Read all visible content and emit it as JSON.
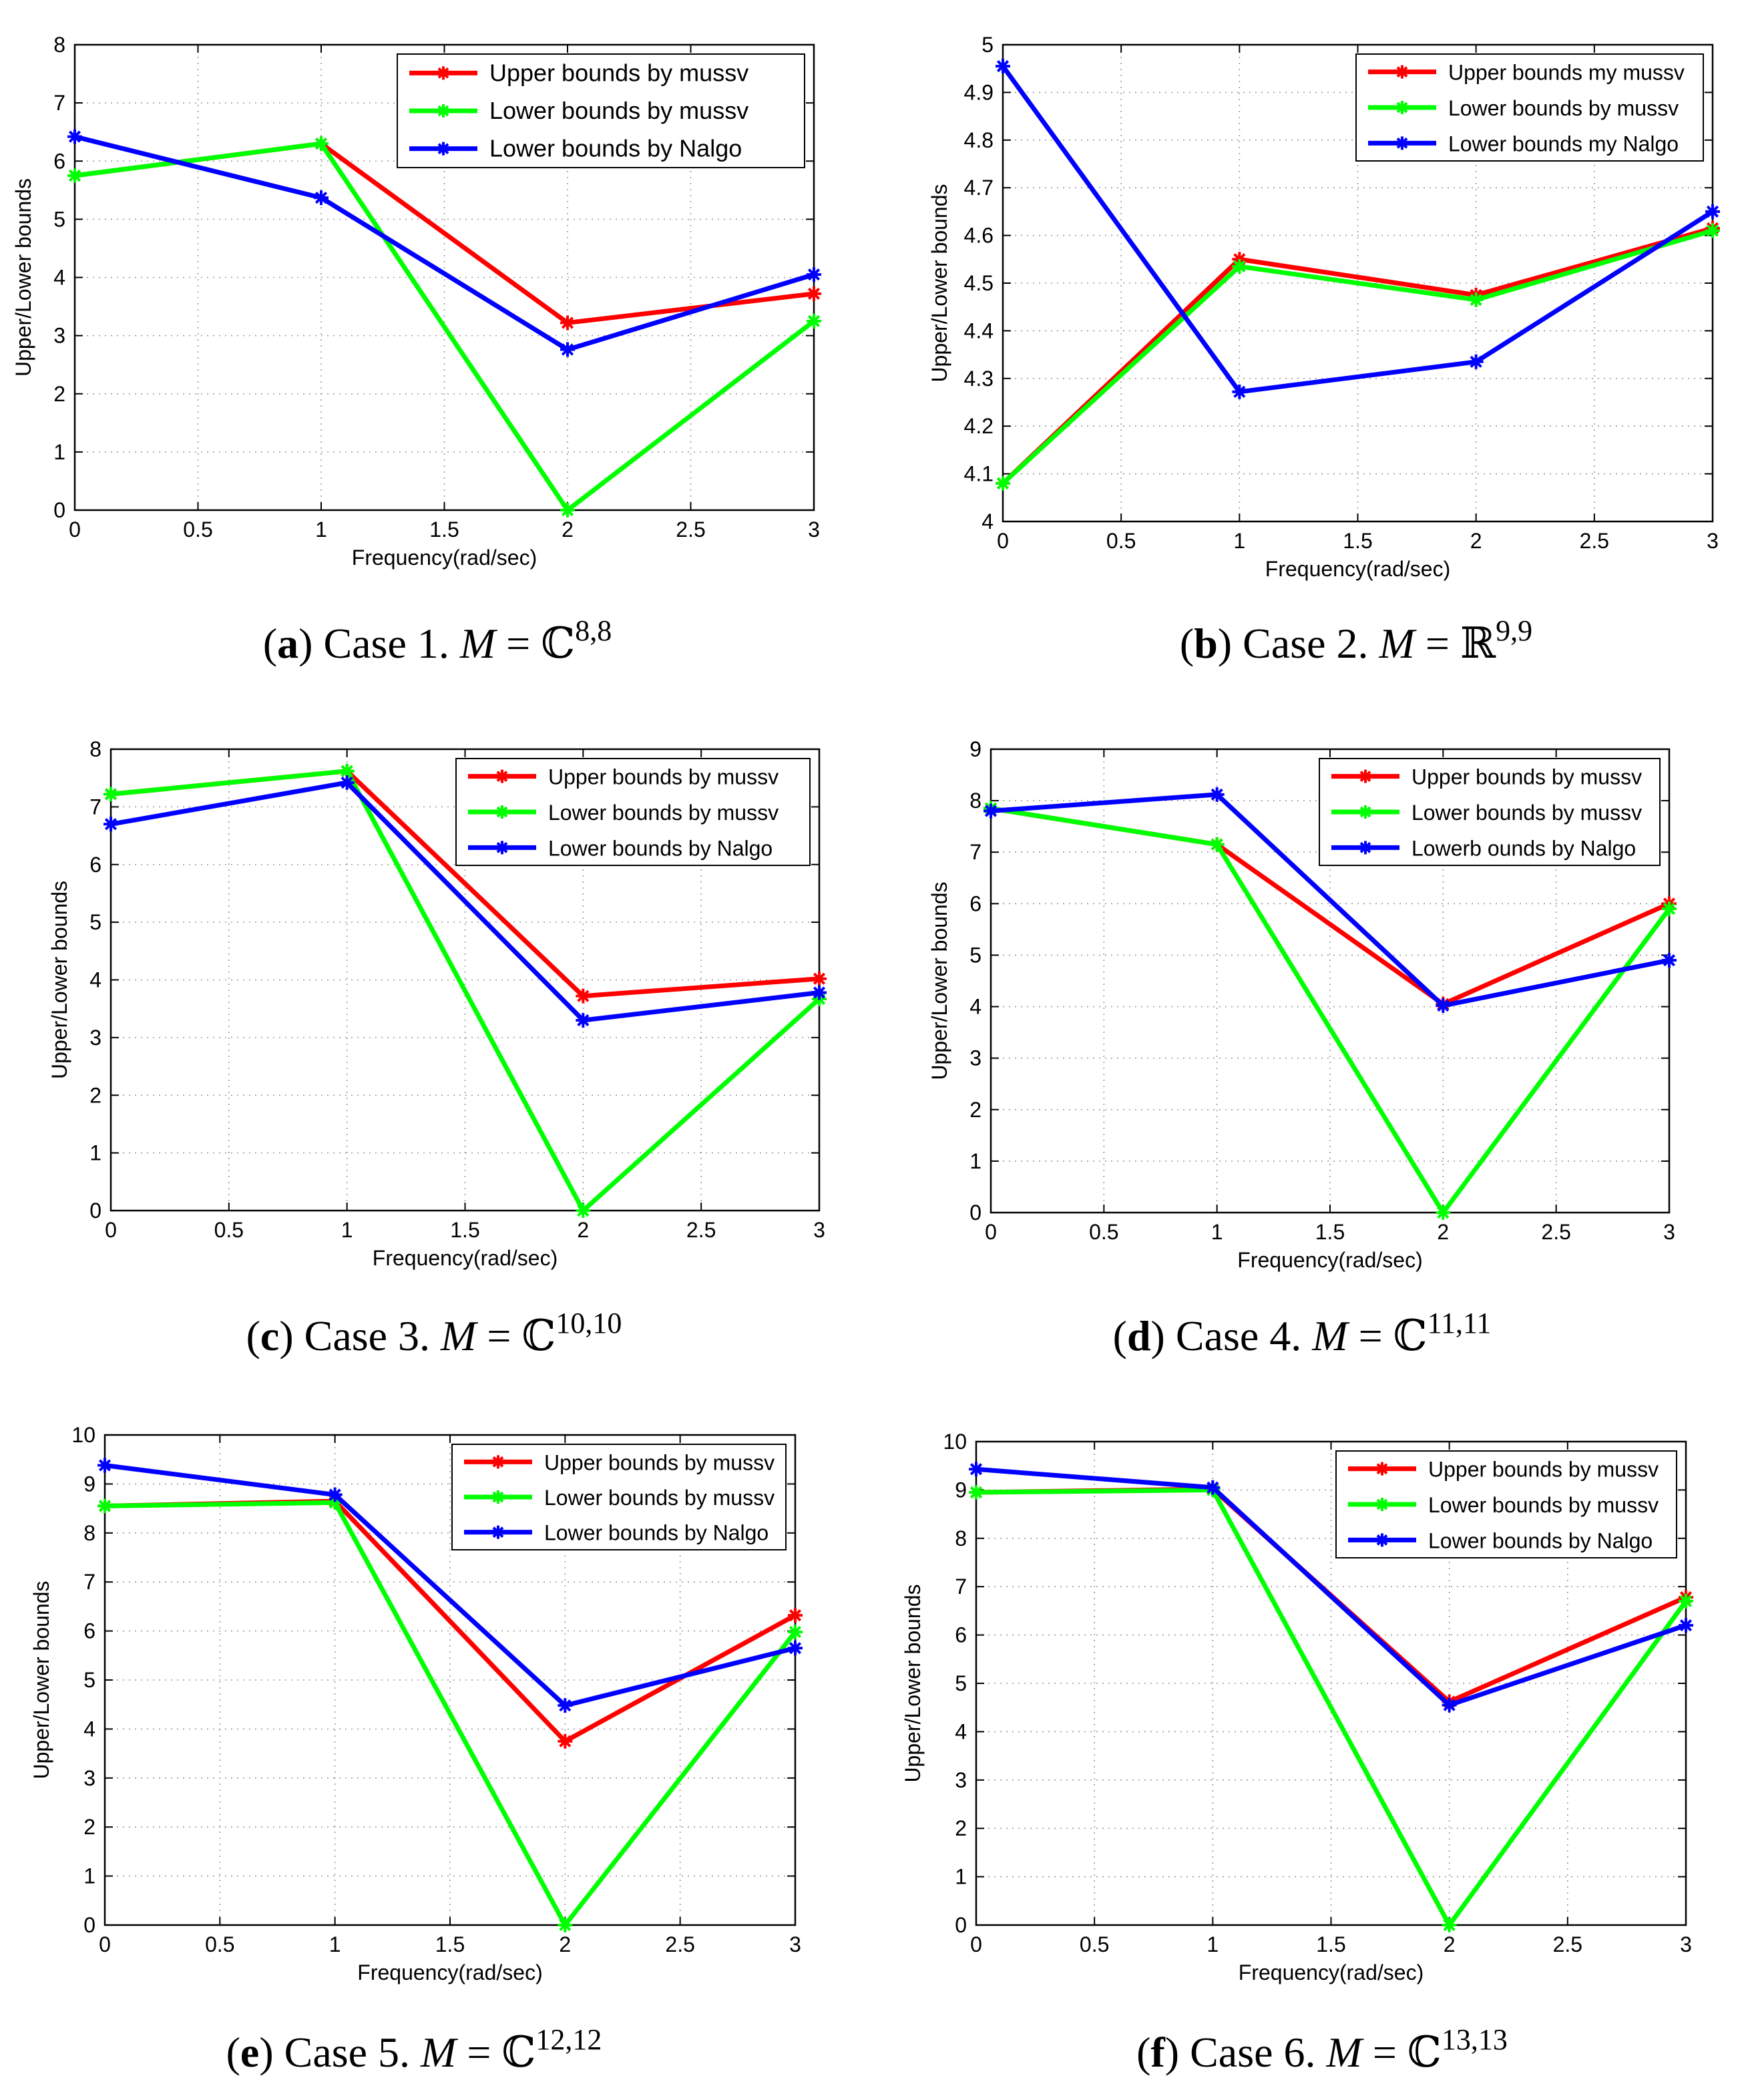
{
  "figure": {
    "panels": [
      {
        "id": "a",
        "caption": {
          "letter": "a",
          "case": "Case 1.",
          "symbol": "ℂ",
          "superscript": "8,8"
        },
        "legend": [
          "Upper bounds by mussv",
          "Lower bounds by mussv",
          "Lower bounds by Nalgo"
        ]
      },
      {
        "id": "b",
        "caption": {
          "letter": "b",
          "case": "Case 2.",
          "symbol": "ℝ",
          "superscript": "9,9"
        },
        "legend": [
          "Upper bounds my mussv",
          "Lower bounds by mussv",
          "Lower bounds my Nalgo"
        ]
      },
      {
        "id": "c",
        "caption": {
          "letter": "c",
          "case": "Case 3.",
          "symbol": "ℂ",
          "superscript": "10,10"
        },
        "legend": [
          "Upper bounds by mussv",
          "Lower bounds by mussv",
          "Lower bounds by Nalgo"
        ]
      },
      {
        "id": "d",
        "caption": {
          "letter": "d",
          "case": "Case 4.",
          "symbol": "ℂ",
          "superscript": "11,11"
        },
        "legend": [
          "Upper bounds by mussv",
          "Lower bounds by mussv",
          "Lowerb ounds by Nalgo"
        ]
      },
      {
        "id": "e",
        "caption": {
          "letter": "e",
          "case": "Case 5.",
          "symbol": "ℂ",
          "superscript": "12,12"
        },
        "legend": [
          "Upper bounds by mussv",
          "Lower bounds by mussv",
          "Lower bounds by Nalgo"
        ]
      },
      {
        "id": "f",
        "caption": {
          "letter": "f",
          "case": "Case 6.",
          "symbol": "ℂ",
          "superscript": "13,13"
        },
        "legend": [
          "Upper bounds by mussv",
          "Lower bounds by mussv",
          "Lower bounds by Nalgo"
        ]
      }
    ],
    "caption_var": "M",
    "caption_eq": "="
  },
  "colors": {
    "upper_mussv": "#ff0000",
    "lower_mussv": "#00ff00",
    "lower_nalgo": "#0000ff"
  },
  "chart_data": [
    {
      "type": "line",
      "xlabel": "Frequency(rad/sec)",
      "ylabel": "Upper/Lower bounds",
      "xlim": [
        0,
        3
      ],
      "ylim": [
        0,
        8
      ],
      "xticks": [
        0,
        0.5,
        1,
        1.5,
        2,
        2.5,
        3
      ],
      "xtick_labels": [
        "0",
        "0.5",
        "1",
        "1.5",
        "2",
        "2.5",
        "3"
      ],
      "yticks": [
        0,
        1,
        2,
        3,
        4,
        5,
        6,
        7,
        8
      ],
      "ytick_labels": [
        "0",
        "1",
        "2",
        "3",
        "4",
        "5",
        "6",
        "7",
        "8"
      ],
      "grid": true,
      "legend_loc": "top-right",
      "x": [
        0,
        1,
        2,
        3
      ],
      "series": [
        {
          "name": "Upper bounds by mussv",
          "color": "#ff0000",
          "values": [
            5.75,
            6.3,
            3.22,
            3.72
          ]
        },
        {
          "name": "Lower bounds by mussv",
          "color": "#00ff00",
          "values": [
            5.75,
            6.3,
            0.0,
            3.25
          ]
        },
        {
          "name": "Lower bounds by Nalgo",
          "color": "#0000ff",
          "values": [
            6.42,
            5.37,
            2.76,
            4.05
          ]
        }
      ]
    },
    {
      "type": "line",
      "xlabel": "Frequency(rad/sec)",
      "ylabel": "Upper/Lower bounds",
      "xlim": [
        0,
        3
      ],
      "ylim": [
        4,
        5
      ],
      "xticks": [
        0,
        0.5,
        1,
        1.5,
        2,
        2.5,
        3
      ],
      "xtick_labels": [
        "0",
        "0.5",
        "1",
        "1.5",
        "2",
        "2.5",
        "3"
      ],
      "yticks": [
        4,
        4.1,
        4.2,
        4.3,
        4.4,
        4.5,
        4.6,
        4.7,
        4.8,
        4.9,
        5
      ],
      "ytick_labels": [
        "4",
        "4.1",
        "4.2",
        "4.3",
        "4.4",
        "4.5",
        "4.6",
        "4.7",
        "4.8",
        "4.9",
        "5"
      ],
      "grid": true,
      "legend_loc": "top-right",
      "x": [
        0,
        1,
        2,
        3
      ],
      "series": [
        {
          "name": "Upper bounds my mussv",
          "color": "#ff0000",
          "values": [
            4.08,
            4.55,
            4.475,
            4.615
          ]
        },
        {
          "name": "Lower bounds by mussv",
          "color": "#00ff00",
          "values": [
            4.08,
            4.535,
            4.465,
            4.61
          ]
        },
        {
          "name": "Lower bounds my Nalgo",
          "color": "#0000ff",
          "values": [
            4.955,
            4.272,
            4.335,
            4.65
          ]
        }
      ]
    },
    {
      "type": "line",
      "xlabel": "Frequency(rad/sec)",
      "ylabel": "Upper/Lower bounds",
      "xlim": [
        0,
        3
      ],
      "ylim": [
        0,
        8
      ],
      "xticks": [
        0,
        0.5,
        1,
        1.5,
        2,
        2.5,
        3
      ],
      "xtick_labels": [
        "0",
        "0.5",
        "1",
        "1.5",
        "2",
        "2.5",
        "3"
      ],
      "yticks": [
        0,
        1,
        2,
        3,
        4,
        5,
        6,
        7,
        8
      ],
      "ytick_labels": [
        "0",
        "1",
        "2",
        "3",
        "4",
        "5",
        "6",
        "7",
        "8"
      ],
      "grid": true,
      "legend_loc": "top-right",
      "x": [
        0,
        1,
        2,
        3
      ],
      "series": [
        {
          "name": "Upper bounds by mussv",
          "color": "#ff0000",
          "values": [
            7.22,
            7.62,
            3.72,
            4.02
          ]
        },
        {
          "name": "Lower bounds by mussv",
          "color": "#00ff00",
          "values": [
            7.22,
            7.62,
            0.0,
            3.67
          ]
        },
        {
          "name": "Lower bounds by Nalgo",
          "color": "#0000ff",
          "values": [
            6.7,
            7.42,
            3.3,
            3.78
          ]
        }
      ]
    },
    {
      "type": "line",
      "xlabel": "Frequency(rad/sec)",
      "ylabel": "Upper/Lower bounds",
      "xlim": [
        0,
        3
      ],
      "ylim": [
        0,
        9
      ],
      "xticks": [
        0,
        0.5,
        1,
        1.5,
        2,
        2.5,
        3
      ],
      "xtick_labels": [
        "0",
        "0.5",
        "1",
        "1.5",
        "2",
        "2.5",
        "3"
      ],
      "yticks": [
        0,
        1,
        2,
        3,
        4,
        5,
        6,
        7,
        8,
        9
      ],
      "ytick_labels": [
        "0",
        "1",
        "2",
        "3",
        "4",
        "5",
        "6",
        "7",
        "8",
        "9"
      ],
      "grid": true,
      "legend_loc": "top-right",
      "x": [
        0,
        1,
        2,
        3
      ],
      "series": [
        {
          "name": "Upper bounds by mussv",
          "color": "#ff0000",
          "values": [
            7.85,
            7.15,
            4.05,
            6.0
          ]
        },
        {
          "name": "Lower bounds by mussv",
          "color": "#00ff00",
          "values": [
            7.85,
            7.15,
            0.0,
            5.9
          ]
        },
        {
          "name": "Lowerb ounds by Nalgo",
          "color": "#0000ff",
          "values": [
            7.8,
            8.12,
            4.02,
            4.9
          ]
        }
      ]
    },
    {
      "type": "line",
      "xlabel": "Frequency(rad/sec)",
      "ylabel": "Upper/Lower bounds",
      "xlim": [
        0,
        3
      ],
      "ylim": [
        0,
        10
      ],
      "xticks": [
        0,
        0.5,
        1,
        1.5,
        2,
        2.5,
        3
      ],
      "xtick_labels": [
        "0",
        "0.5",
        "1",
        "1.5",
        "2",
        "2.5",
        "3"
      ],
      "yticks": [
        0,
        1,
        2,
        3,
        4,
        5,
        6,
        7,
        8,
        9,
        10
      ],
      "ytick_labels": [
        "0",
        "1",
        "2",
        "3",
        "4",
        "5",
        "6",
        "7",
        "8",
        "9",
        "10"
      ],
      "grid": true,
      "legend_loc": "top-right",
      "x": [
        0,
        1,
        2,
        3
      ],
      "series": [
        {
          "name": "Upper bounds by mussv",
          "color": "#ff0000",
          "values": [
            8.55,
            8.65,
            3.75,
            6.32
          ]
        },
        {
          "name": "Lower bounds by mussv",
          "color": "#00ff00",
          "values": [
            8.55,
            8.62,
            0.0,
            5.98
          ]
        },
        {
          "name": "Lower bounds by Nalgo",
          "color": "#0000ff",
          "values": [
            9.38,
            8.78,
            4.48,
            5.65
          ]
        }
      ]
    },
    {
      "type": "line",
      "xlabel": "Frequency(rad/sec)",
      "ylabel": "Upper/Lower bounds",
      "xlim": [
        0,
        3
      ],
      "ylim": [
        0,
        10
      ],
      "xticks": [
        0,
        0.5,
        1,
        1.5,
        2,
        2.5,
        3
      ],
      "xtick_labels": [
        "0",
        "0.5",
        "1",
        "1.5",
        "2",
        "2.5",
        "3"
      ],
      "yticks": [
        0,
        1,
        2,
        3,
        4,
        5,
        6,
        7,
        8,
        9,
        10
      ],
      "ytick_labels": [
        "0",
        "1",
        "2",
        "3",
        "4",
        "5",
        "6",
        "7",
        "8",
        "9",
        "10"
      ],
      "grid": true,
      "legend_loc": "top-right",
      "x": [
        0,
        1,
        2,
        3
      ],
      "series": [
        {
          "name": "Upper bounds by mussv",
          "color": "#ff0000",
          "values": [
            8.95,
            9.02,
            4.62,
            6.78
          ]
        },
        {
          "name": "Lower bounds by mussv",
          "color": "#00ff00",
          "values": [
            8.95,
            9.0,
            0.0,
            6.7
          ]
        },
        {
          "name": "Lower bounds by Nalgo",
          "color": "#0000ff",
          "values": [
            9.43,
            9.05,
            4.55,
            6.2
          ]
        }
      ]
    }
  ]
}
